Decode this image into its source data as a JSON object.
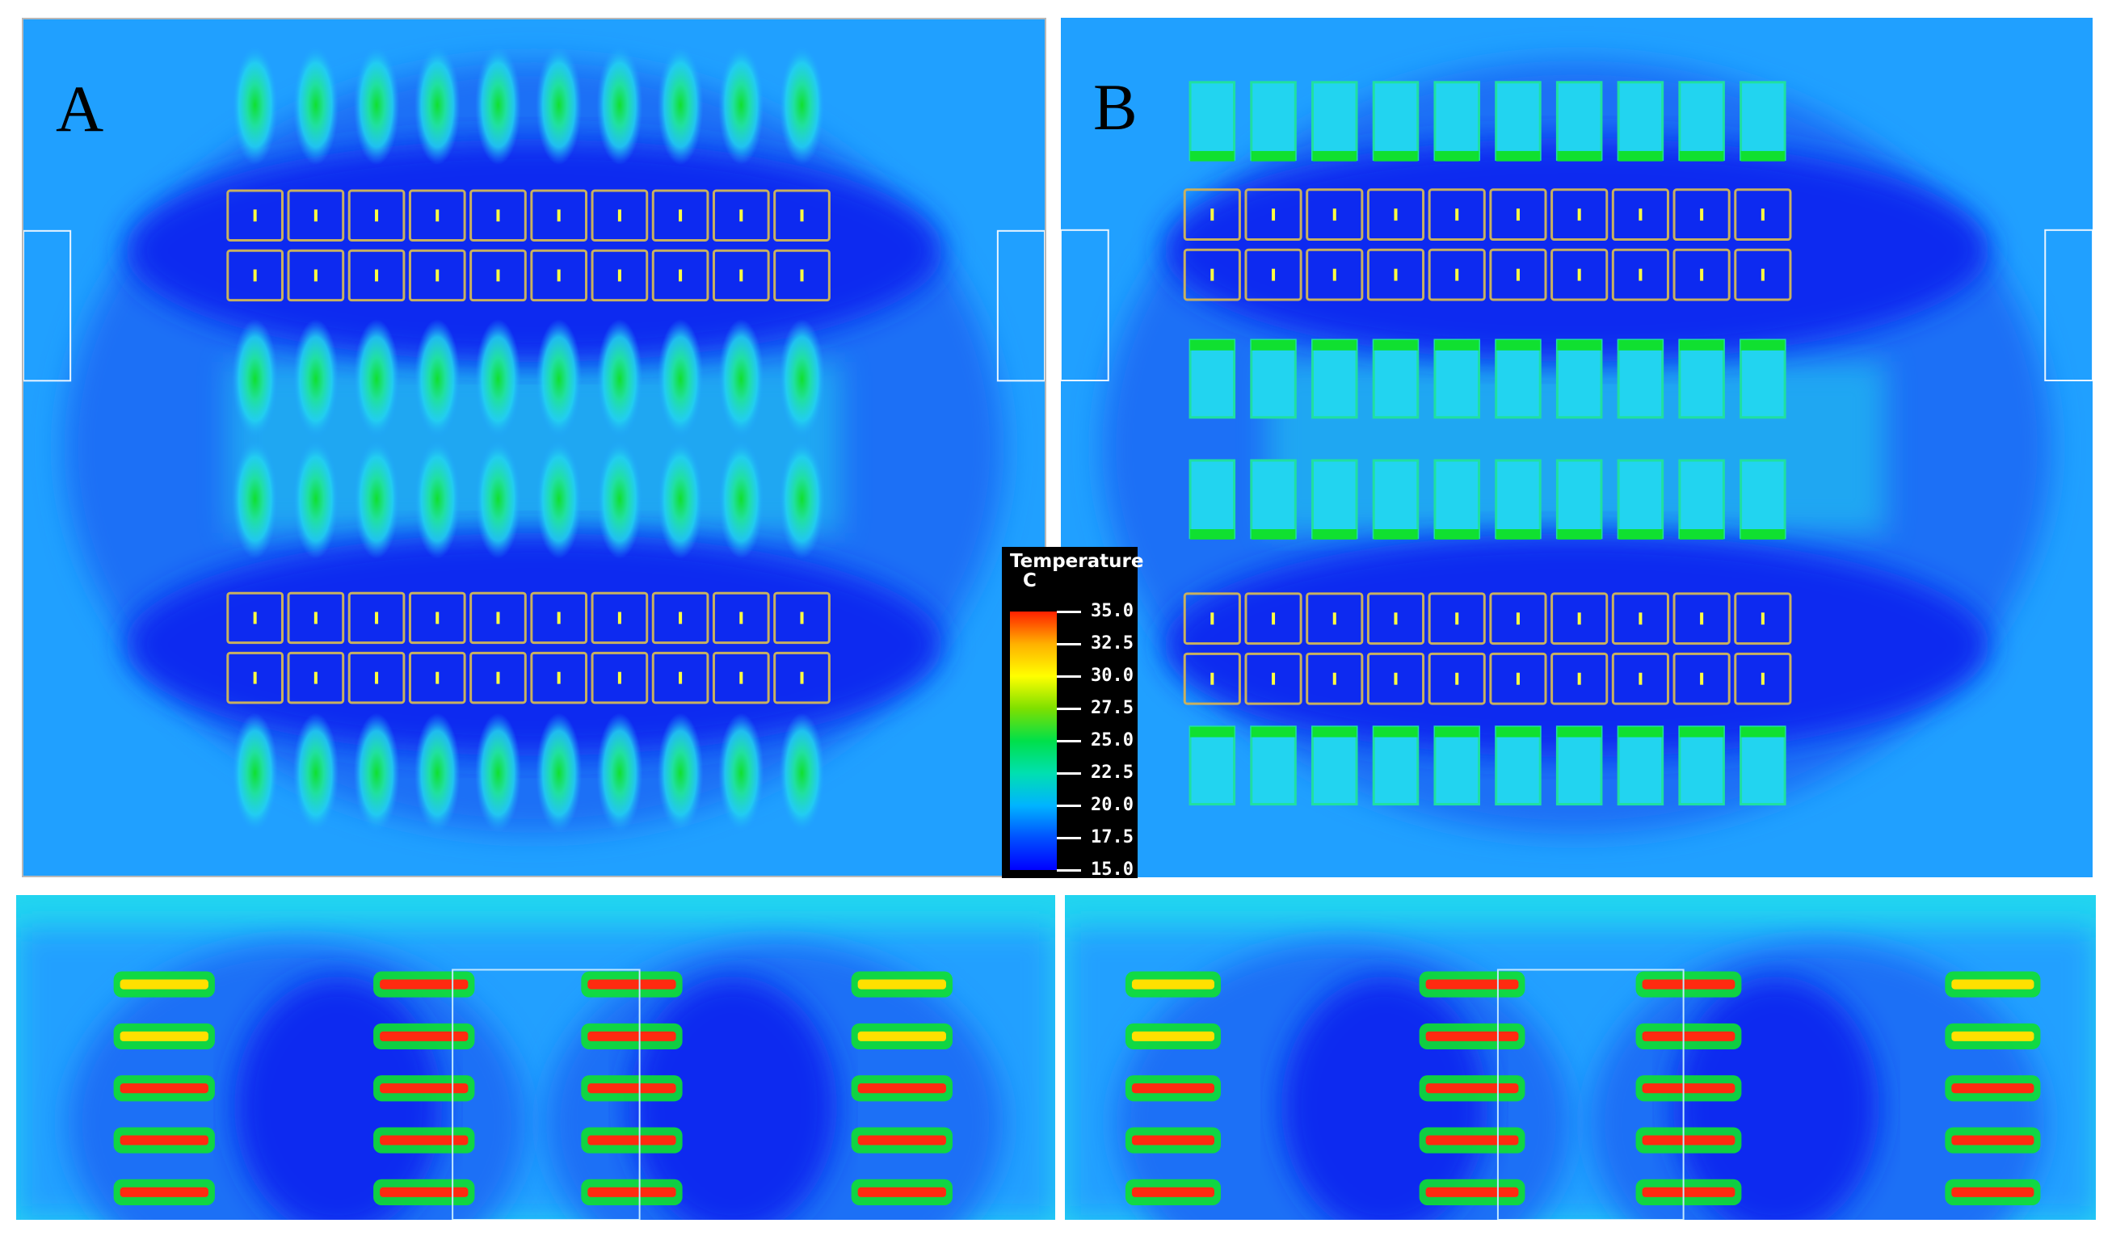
{
  "panels": {
    "a": {
      "label": "A"
    },
    "b": {
      "label": "B"
    }
  },
  "legend": {
    "title_line1": "Temperature",
    "title_line2": "C",
    "ticks": [
      "35.0",
      "32.5",
      "30.0",
      "27.5",
      "25.0",
      "22.5",
      "20.0",
      "17.5",
      "15.0"
    ],
    "range": [
      15.0,
      35.0
    ],
    "colors": [
      "#0000ff",
      "#0050ff",
      "#00b4ff",
      "#00e0b0",
      "#00e04a",
      "#7ee000",
      "#ffff00",
      "#ffb000",
      "#ff2000"
    ]
  },
  "colors": {
    "deep_blue": "#0a2cf0",
    "mid_blue": "#1a70f6",
    "light_blue": "#20a0ff",
    "cyan": "#22d4f0",
    "teal": "#20e0a0",
    "green": "#10e030",
    "red": "#ff2a10",
    "outline": "#c8b060"
  }
}
